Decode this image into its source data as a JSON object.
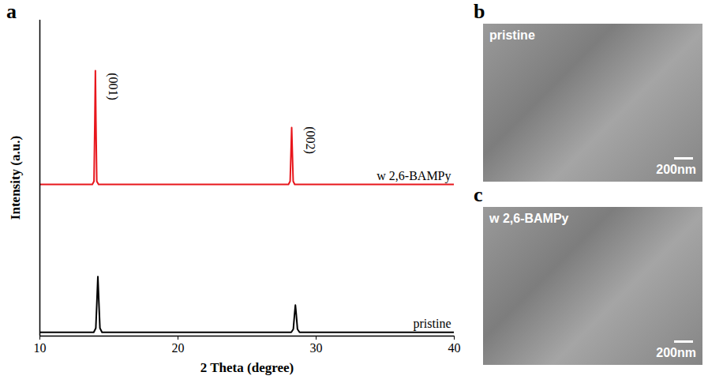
{
  "chart_data": {
    "type": "line",
    "panel_label": "a",
    "xlabel": "2 Theta (degree)",
    "ylabel": "Intensity (a.u.)",
    "xlim": [
      10,
      40
    ],
    "xticks": [
      10,
      20,
      30,
      40
    ],
    "ylim": [
      0,
      100
    ],
    "tick_labels": "x",
    "series": [
      {
        "name": "w 2,6-BAMPy",
        "color": "#e8161c",
        "x": [
          10,
          13.8,
          13.92,
          13.98,
          14.02,
          14.06,
          14.12,
          14.25,
          28.0,
          28.12,
          28.18,
          28.23,
          28.28,
          28.34,
          28.45,
          40
        ],
        "values": [
          48,
          48,
          49,
          68,
          84,
          68,
          49,
          48,
          48,
          49,
          58,
          66,
          58,
          49,
          48,
          48
        ]
      },
      {
        "name": "pristine",
        "color": "#000000",
        "x": [
          10,
          13.9,
          14.05,
          14.13,
          14.2,
          14.27,
          14.35,
          14.5,
          28.2,
          28.35,
          28.44,
          28.5,
          28.56,
          28.65,
          28.8,
          40
        ],
        "values": [
          1.2,
          1.2,
          2.5,
          11,
          18.8,
          11,
          2.5,
          1.2,
          1.2,
          2.2,
          7,
          9.8,
          7,
          2.2,
          1.2,
          1.2
        ]
      }
    ],
    "annotations": [
      {
        "text": "(001)",
        "x": 15.3,
        "y": 79
      },
      {
        "text": "(002)",
        "x": 29.6,
        "y": 62
      }
    ]
  },
  "images": [
    {
      "panel_label": "b",
      "label": "pristine",
      "scale_bar": "200nm"
    },
    {
      "panel_label": "c",
      "label": "w 2,6-BAMPy",
      "scale_bar": "200nm"
    }
  ]
}
